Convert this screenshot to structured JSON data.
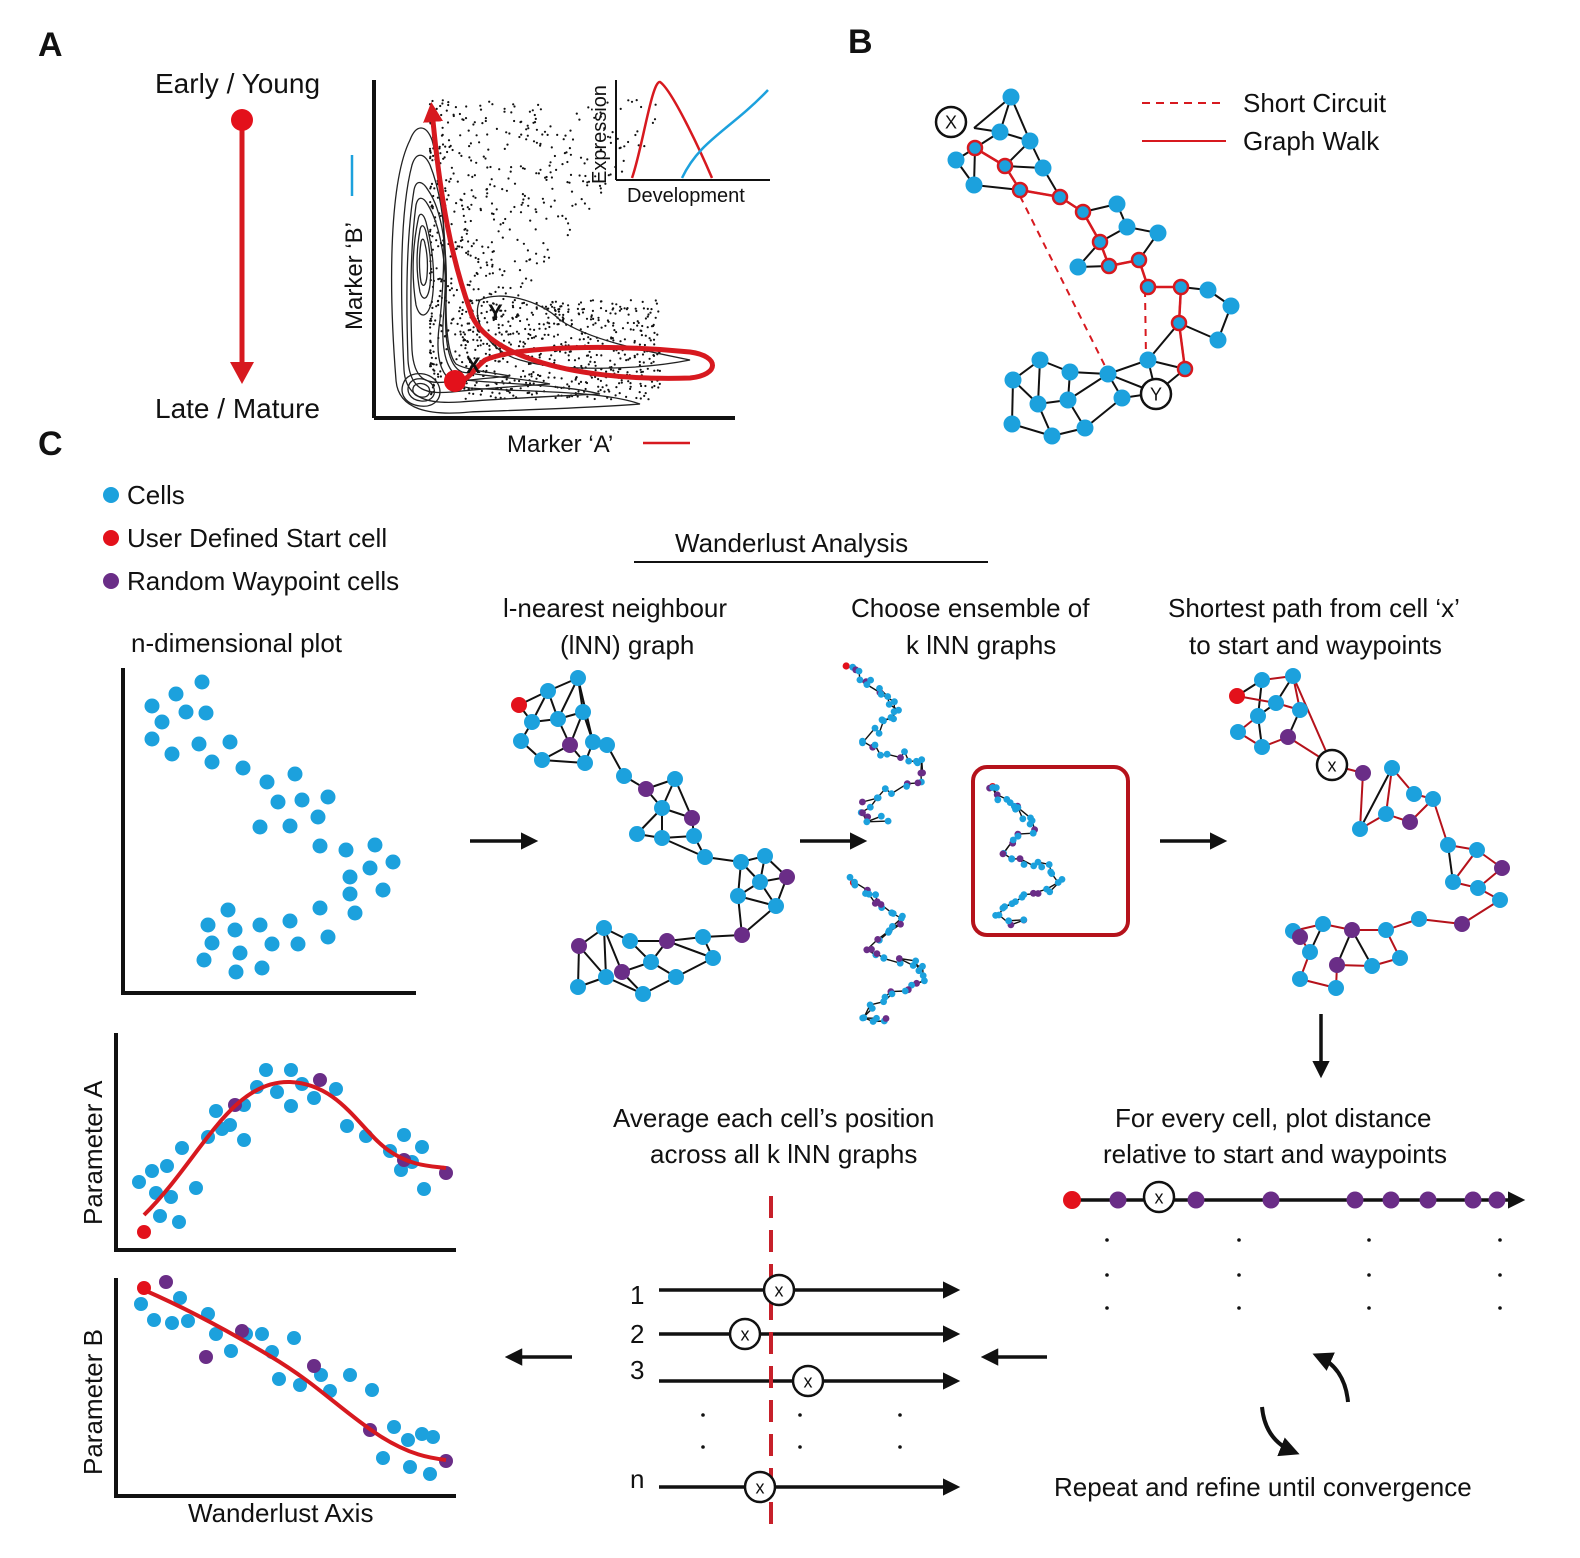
{
  "panels": {
    "a": "A",
    "b": "B",
    "c": "C"
  },
  "panel_a": {
    "top_label": "Early / Young",
    "bottom_label": "Late / Mature",
    "y_axis": "Marker ‘B’",
    "x_axis": "Marker ‘A’",
    "inset_y": "Expression",
    "inset_x": "Development",
    "point_x": "X",
    "point_y": "Y"
  },
  "panel_b": {
    "legend_dashed": "Short Circuit",
    "legend_solid": "Graph Walk",
    "node_x": "X",
    "node_y": "Y"
  },
  "legend": {
    "cells": "Cells",
    "start": "User Defined Start cell",
    "waypoints": "Random Waypoint cells"
  },
  "steps": {
    "header": "Wanderlust Analysis",
    "plot_title": "n-dimensional plot",
    "inn_line1": "l-nearest neighbour",
    "inn_line2": "(lNN) graph",
    "ensemble_line1": "Choose ensemble of",
    "ensemble_line2": "k lNN graphs",
    "shortest_line1": "Shortest path from cell ‘x’",
    "shortest_line2": "to start and waypoints",
    "plot_dist_line1": "For every cell, plot distance",
    "plot_dist_line2": "relative to start and waypoints",
    "average_line1": "Average each cell’s position",
    "average_line2": "across all k lNN graphs",
    "repeat": "Repeat and refine until convergence"
  },
  "bottom_plots": {
    "param_a": "Parameter A",
    "param_b": "Parameter B",
    "x_axis": "Wanderlust Axis"
  },
  "rows": {
    "r1": "1",
    "r2": "2",
    "r3": "3",
    "rn": "n",
    "marker": "x"
  },
  "colors": {
    "cell": "#1ca1dd",
    "start": "#e3111b",
    "waypoint": "#6a2d87"
  }
}
